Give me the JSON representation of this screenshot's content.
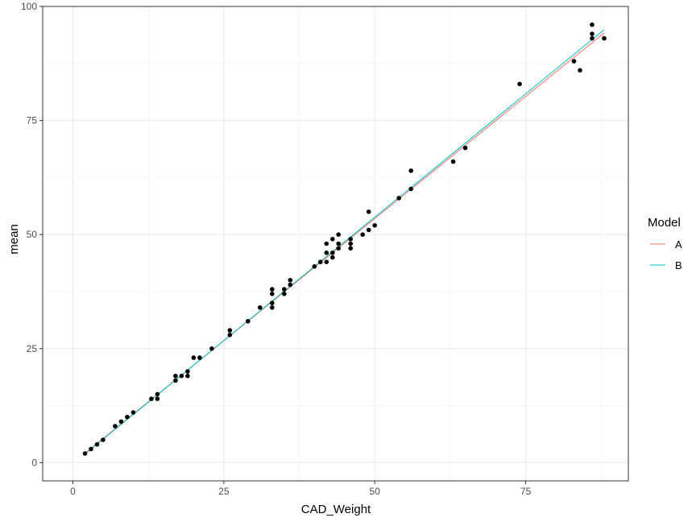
{
  "chart_data": {
    "type": "scatter",
    "title": "",
    "xlabel": "CAD_Weight",
    "ylabel": "mean",
    "xlim": [
      -5,
      92
    ],
    "ylim": [
      -4,
      100
    ],
    "x_ticks": [
      0,
      25,
      50,
      75
    ],
    "y_ticks": [
      0,
      25,
      50,
      75,
      100
    ],
    "x_minor": [
      12.5,
      37.5,
      62.5,
      87.5
    ],
    "y_minor": [
      12.5,
      37.5,
      62.5,
      87.5
    ],
    "grid": true,
    "points": {
      "color": "#000000",
      "data": [
        [
          2,
          2
        ],
        [
          3,
          3
        ],
        [
          4,
          4
        ],
        [
          5,
          5
        ],
        [
          7,
          8
        ],
        [
          8,
          9
        ],
        [
          9,
          10
        ],
        [
          10,
          11
        ],
        [
          13,
          14
        ],
        [
          14,
          14
        ],
        [
          14,
          15
        ],
        [
          17,
          18
        ],
        [
          17,
          19
        ],
        [
          18,
          19
        ],
        [
          19,
          19
        ],
        [
          19,
          20
        ],
        [
          20,
          23
        ],
        [
          21,
          23
        ],
        [
          23,
          25
        ],
        [
          26,
          28
        ],
        [
          26,
          29
        ],
        [
          29,
          31
        ],
        [
          31,
          34
        ],
        [
          33,
          34
        ],
        [
          33,
          35
        ],
        [
          33,
          37
        ],
        [
          33,
          38
        ],
        [
          35,
          37
        ],
        [
          35,
          38
        ],
        [
          36,
          39
        ],
        [
          36,
          40
        ],
        [
          40,
          43
        ],
        [
          41,
          44
        ],
        [
          42,
          44
        ],
        [
          42,
          46
        ],
        [
          42,
          48
        ],
        [
          43,
          45
        ],
        [
          43,
          46
        ],
        [
          43,
          49
        ],
        [
          44,
          47
        ],
        [
          44,
          48
        ],
        [
          44,
          50
        ],
        [
          46,
          47
        ],
        [
          46,
          48
        ],
        [
          46,
          49
        ],
        [
          48,
          50
        ],
        [
          49,
          51
        ],
        [
          49,
          55
        ],
        [
          50,
          52
        ],
        [
          54,
          58
        ],
        [
          56,
          60
        ],
        [
          56,
          64
        ],
        [
          63,
          66
        ],
        [
          65,
          69
        ],
        [
          74,
          83
        ],
        [
          83,
          88
        ],
        [
          84,
          86
        ],
        [
          86,
          93
        ],
        [
          86,
          94
        ],
        [
          86,
          96
        ],
        [
          88,
          93
        ]
      ]
    },
    "series": [
      {
        "name": "A",
        "color": "#F8766D",
        "x": [
          2,
          88
        ],
        "y": [
          2.1,
          94.2
        ]
      },
      {
        "name": "B",
        "color": "#00BFC4",
        "x": [
          2,
          88
        ],
        "y": [
          1.9,
          94.9
        ]
      }
    ],
    "legend": {
      "title": "Model",
      "placement": "right"
    }
  }
}
